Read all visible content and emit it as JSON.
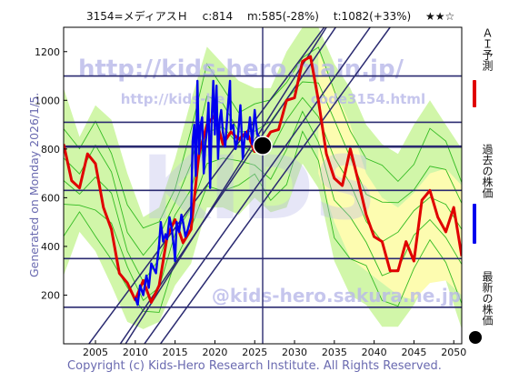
{
  "header": {
    "code": "3154=メディアスＨ",
    "current": "c:814",
    "mid": "m:585(-28%)",
    "target": "t:1082(+33%)",
    "rating": "★★☆"
  },
  "side_text": "Generated on Monday 2026/1/5.",
  "footer": "Copyright (c) Kids-Hero Research Institute. All Rights Reserved.",
  "watermark": {
    "url_top": "http://kids-hero.main.jp/",
    "url_mid_left": "http://kids-he",
    "url_mid_right": "code3154.html",
    "url_bottom": "@kids-hero.sakura.ne.jp",
    "big": "KIDS"
  },
  "legend": {
    "ai_label": "ＡＩ予測",
    "past_label": "過去の株価",
    "latest_label": "最新の株価"
  },
  "colors": {
    "ai": "#e00000",
    "past": "#0000ee",
    "band_green": "#66dd33",
    "band_yellow": "#fdfcb0",
    "band_light": "#ccf5a0",
    "line_dark": "#2a2a70",
    "watermark": "#b8b8e8"
  },
  "chart_data": {
    "type": "line",
    "xlim": [
      2001,
      2051
    ],
    "ylim": [
      0,
      1300
    ],
    "xticks": [
      2005,
      2010,
      2015,
      2020,
      2025,
      2030,
      2035,
      2040,
      2045,
      2050
    ],
    "yticks": [
      200,
      400,
      600,
      800,
      1000,
      1200
    ],
    "hlines": [
      150,
      350,
      630,
      910,
      1100
    ],
    "hlines_bold": [
      810
    ],
    "vline": 2026,
    "latest_point": {
      "x": 2026,
      "y": 814
    },
    "ai_forecast": [
      [
        2001,
        820
      ],
      [
        2002,
        670
      ],
      [
        2003,
        640
      ],
      [
        2004,
        780
      ],
      [
        2005,
        740
      ],
      [
        2006,
        560
      ],
      [
        2007,
        470
      ],
      [
        2008,
        290
      ],
      [
        2009,
        250
      ],
      [
        2010,
        180
      ],
      [
        2011,
        260
      ],
      [
        2012,
        170
      ],
      [
        2013,
        240
      ],
      [
        2014,
        440
      ],
      [
        2015,
        510
      ],
      [
        2016,
        415
      ],
      [
        2017,
        470
      ],
      [
        2018,
        780
      ],
      [
        2019,
        900
      ],
      [
        2020,
        940
      ],
      [
        2021,
        820
      ],
      [
        2022,
        870
      ],
      [
        2023,
        840
      ],
      [
        2024,
        870
      ],
      [
        2025,
        790
      ],
      [
        2026,
        820
      ],
      [
        2027,
        870
      ],
      [
        2028,
        880
      ],
      [
        2029,
        1000
      ],
      [
        2030,
        1010
      ],
      [
        2031,
        1160
      ],
      [
        2032,
        1180
      ],
      [
        2033,
        1000
      ],
      [
        2034,
        780
      ],
      [
        2035,
        680
      ],
      [
        2036,
        650
      ],
      [
        2037,
        800
      ],
      [
        2038,
        670
      ],
      [
        2039,
        530
      ],
      [
        2040,
        440
      ],
      [
        2041,
        420
      ],
      [
        2042,
        300
      ],
      [
        2043,
        300
      ],
      [
        2044,
        420
      ],
      [
        2045,
        340
      ],
      [
        2046,
        590
      ],
      [
        2047,
        630
      ],
      [
        2048,
        520
      ],
      [
        2049,
        460
      ],
      [
        2050,
        560
      ],
      [
        2051,
        360
      ]
    ],
    "past_price": [
      [
        2010,
        190
      ],
      [
        2010.3,
        160
      ],
      [
        2010.6,
        240
      ],
      [
        2011,
        200
      ],
      [
        2011.4,
        280
      ],
      [
        2011.7,
        230
      ],
      [
        2012,
        330
      ],
      [
        2012.3,
        310
      ],
      [
        2012.6,
        290
      ],
      [
        2013,
        410
      ],
      [
        2013.2,
        500
      ],
      [
        2013.5,
        420
      ],
      [
        2013.8,
        450
      ],
      [
        2014,
        430
      ],
      [
        2014.3,
        520
      ],
      [
        2014.6,
        470
      ],
      [
        2014.9,
        380
      ],
      [
        2015,
        340
      ],
      [
        2015.2,
        500
      ],
      [
        2015.5,
        460
      ],
      [
        2015.8,
        530
      ],
      [
        2016,
        500
      ],
      [
        2016.3,
        440
      ],
      [
        2016.6,
        470
      ],
      [
        2017,
        520
      ],
      [
        2017.2,
        830
      ],
      [
        2017.4,
        900
      ],
      [
        2017.6,
        690
      ],
      [
        2017.8,
        1080
      ],
      [
        2018,
        780
      ],
      [
        2018.2,
        900
      ],
      [
        2018.4,
        930
      ],
      [
        2018.6,
        700
      ],
      [
        2018.8,
        820
      ],
      [
        2019,
        880
      ],
      [
        2019.2,
        990
      ],
      [
        2019.4,
        640
      ],
      [
        2019.6,
        920
      ],
      [
        2019.8,
        1080
      ],
      [
        2020,
        860
      ],
      [
        2020.2,
        1060
      ],
      [
        2020.4,
        760
      ],
      [
        2020.6,
        920
      ],
      [
        2020.8,
        960
      ],
      [
        2021,
        870
      ],
      [
        2021.3,
        810
      ],
      [
        2021.6,
        960
      ],
      [
        2021.9,
        1080
      ],
      [
        2022,
        880
      ],
      [
        2022.3,
        900
      ],
      [
        2022.6,
        800
      ],
      [
        2022.9,
        850
      ],
      [
        2023.2,
        980
      ],
      [
        2023.5,
        760
      ],
      [
        2023.8,
        870
      ],
      [
        2024.1,
        840
      ],
      [
        2024.4,
        930
      ],
      [
        2024.7,
        820
      ],
      [
        2025,
        960
      ],
      [
        2025.3,
        860
      ],
      [
        2025.6,
        850
      ],
      [
        2026,
        814
      ]
    ],
    "channel_lines": [
      {
        "x0": 2003.5,
        "y0": -30,
        "x1": 2036,
        "y1": 1400
      },
      {
        "x0": 2007.5,
        "y0": -30,
        "x1": 2036,
        "y1": 1340
      },
      {
        "x0": 2008.2,
        "y0": -30,
        "x1": 2034,
        "y1": 1300
      },
      {
        "x0": 2010.5,
        "y0": -30,
        "x1": 2039.5,
        "y1": 1300
      },
      {
        "x0": 2012.5,
        "y0": -30,
        "x1": 2042,
        "y1": 1300
      }
    ],
    "band_green": {
      "x": [
        2001,
        2003,
        2005,
        2007,
        2009,
        2011,
        2013,
        2015,
        2017,
        2019,
        2021,
        2023,
        2025,
        2027,
        2029,
        2031,
        2033,
        2035,
        2037,
        2039,
        2041,
        2043,
        2045,
        2047,
        2049,
        2051
      ],
      "upper": [
        1050,
        850,
        980,
        920,
        700,
        520,
        560,
        760,
        1000,
        1220,
        1150,
        1080,
        1050,
        1050,
        1200,
        1300,
        1300,
        1150,
        1050,
        900,
        820,
        780,
        900,
        1000,
        900,
        800
      ],
      "lower": [
        280,
        460,
        380,
        240,
        90,
        60,
        90,
        240,
        330,
        560,
        560,
        530,
        600,
        540,
        560,
        740,
        640,
        340,
        200,
        160,
        70,
        70,
        160,
        280,
        260,
        60
      ]
    },
    "band_yellow": {
      "x": [
        2033,
        2035,
        2037,
        2039,
        2041,
        2043,
        2045,
        2047,
        2049,
        2051
      ],
      "upper": [
        1200,
        1050,
        900,
        700,
        600,
        560,
        620,
        700,
        720,
        650
      ],
      "lower": [
        700,
        500,
        350,
        300,
        250,
        200,
        180,
        250,
        260,
        200
      ]
    }
  }
}
